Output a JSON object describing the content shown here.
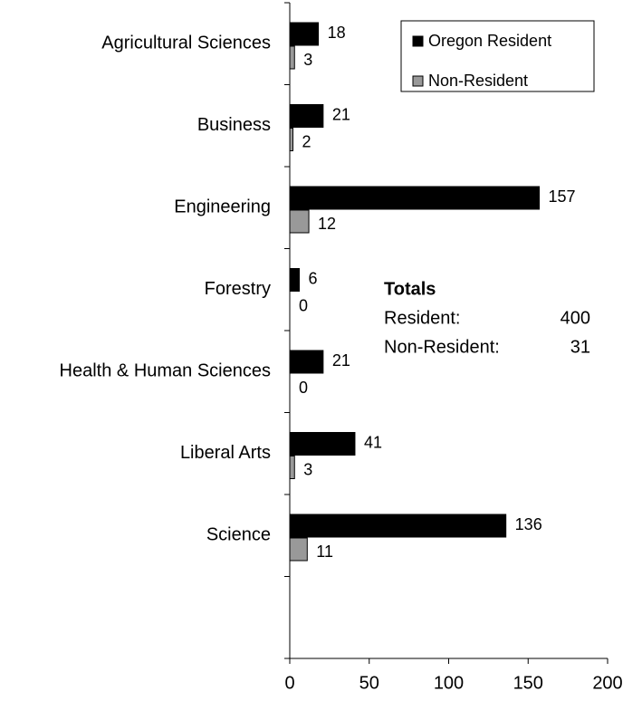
{
  "chart_data": {
    "type": "hbar",
    "categories": [
      "Agricultural Sciences",
      "Business",
      "Engineering",
      "Forestry",
      "Health & Human Sciences",
      "Liberal Arts",
      "Science",
      null
    ],
    "series": [
      {
        "name": "Oregon Resident",
        "color": "#000000",
        "values": [
          18,
          21,
          157,
          6,
          21,
          41,
          136,
          null
        ]
      },
      {
        "name": "Non-Resident",
        "color": "#999999",
        "values": [
          3,
          2,
          12,
          0,
          0,
          3,
          11,
          null
        ]
      }
    ],
    "xlim": [
      0,
      200
    ],
    "xticks": [
      0,
      50,
      100,
      150,
      200
    ],
    "legend": "upper right",
    "grid": false,
    "totals": {
      "title": "Totals",
      "rows": [
        {
          "label": "Resident:",
          "value": 400
        },
        {
          "label": "Non-Resident:",
          "value": 31
        }
      ]
    }
  }
}
